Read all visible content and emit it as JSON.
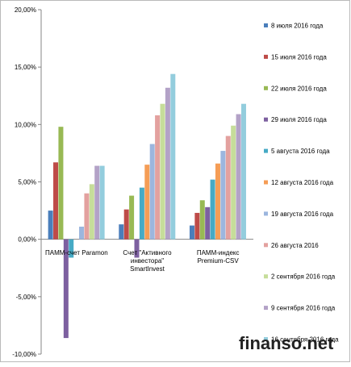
{
  "chart_data": {
    "type": "bar",
    "title": "",
    "xlabel": "",
    "ylabel": "",
    "ylim": [
      -0.1,
      0.2
    ],
    "yticks": [
      -0.1,
      -0.05,
      0.0,
      0.05,
      0.1,
      0.15,
      0.2
    ],
    "ytick_labels": [
      "-10,00%",
      "-5,00%",
      "0,00%",
      "5,00%",
      "10,00%",
      "15,00%",
      "20,00%"
    ],
    "grid": false,
    "legend_position": "right",
    "categories": [
      [
        "ПАММ-счет Paramon"
      ],
      [
        "Счет \"Активного",
        "инвестора\"",
        "SmartInvest"
      ],
      [
        "ПАММ-индекс",
        "Premium-CSV"
      ]
    ],
    "series": [
      {
        "name": "8 июля 2016 года",
        "color": "#4a7ebb",
        "values": [
          0.025,
          0.013,
          0.012
        ]
      },
      {
        "name": "15 июля 2016 года",
        "color": "#be4b48",
        "values": [
          0.067,
          0.026,
          0.023
        ]
      },
      {
        "name": "22 июля 2016 года",
        "color": "#98b954",
        "values": [
          0.098,
          0.038,
          0.034
        ]
      },
      {
        "name": "29 июля 2016 года",
        "color": "#7d60a0",
        "values": [
          -0.086,
          -0.016,
          0.028
        ]
      },
      {
        "name": "5 августа 2016 года",
        "color": "#46aac5",
        "values": [
          -0.016,
          0.045,
          0.052
        ]
      },
      {
        "name": "12 августа 2016 года",
        "color": "#f59d56",
        "values": [
          0.0,
          0.065,
          0.066
        ]
      },
      {
        "name": "19 августа 2016 года",
        "color": "#9cb6de",
        "values": [
          0.011,
          0.083,
          0.077
        ]
      },
      {
        "name": "26 августа 2016",
        "color": "#e3a19f",
        "values": [
          0.04,
          0.108,
          0.09
        ]
      },
      {
        "name": "2 сентября 2016 года",
        "color": "#c6dd9a",
        "values": [
          0.048,
          0.118,
          0.099
        ]
      },
      {
        "name": "9 сентября 2016 года",
        "color": "#b3a2c7",
        "values": [
          0.064,
          0.132,
          0.109
        ]
      },
      {
        "name": "16 сентября 2016 года",
        "color": "#93cddd",
        "values": [
          0.064,
          0.144,
          0.118
        ]
      }
    ]
  },
  "watermark": "finanso.net"
}
